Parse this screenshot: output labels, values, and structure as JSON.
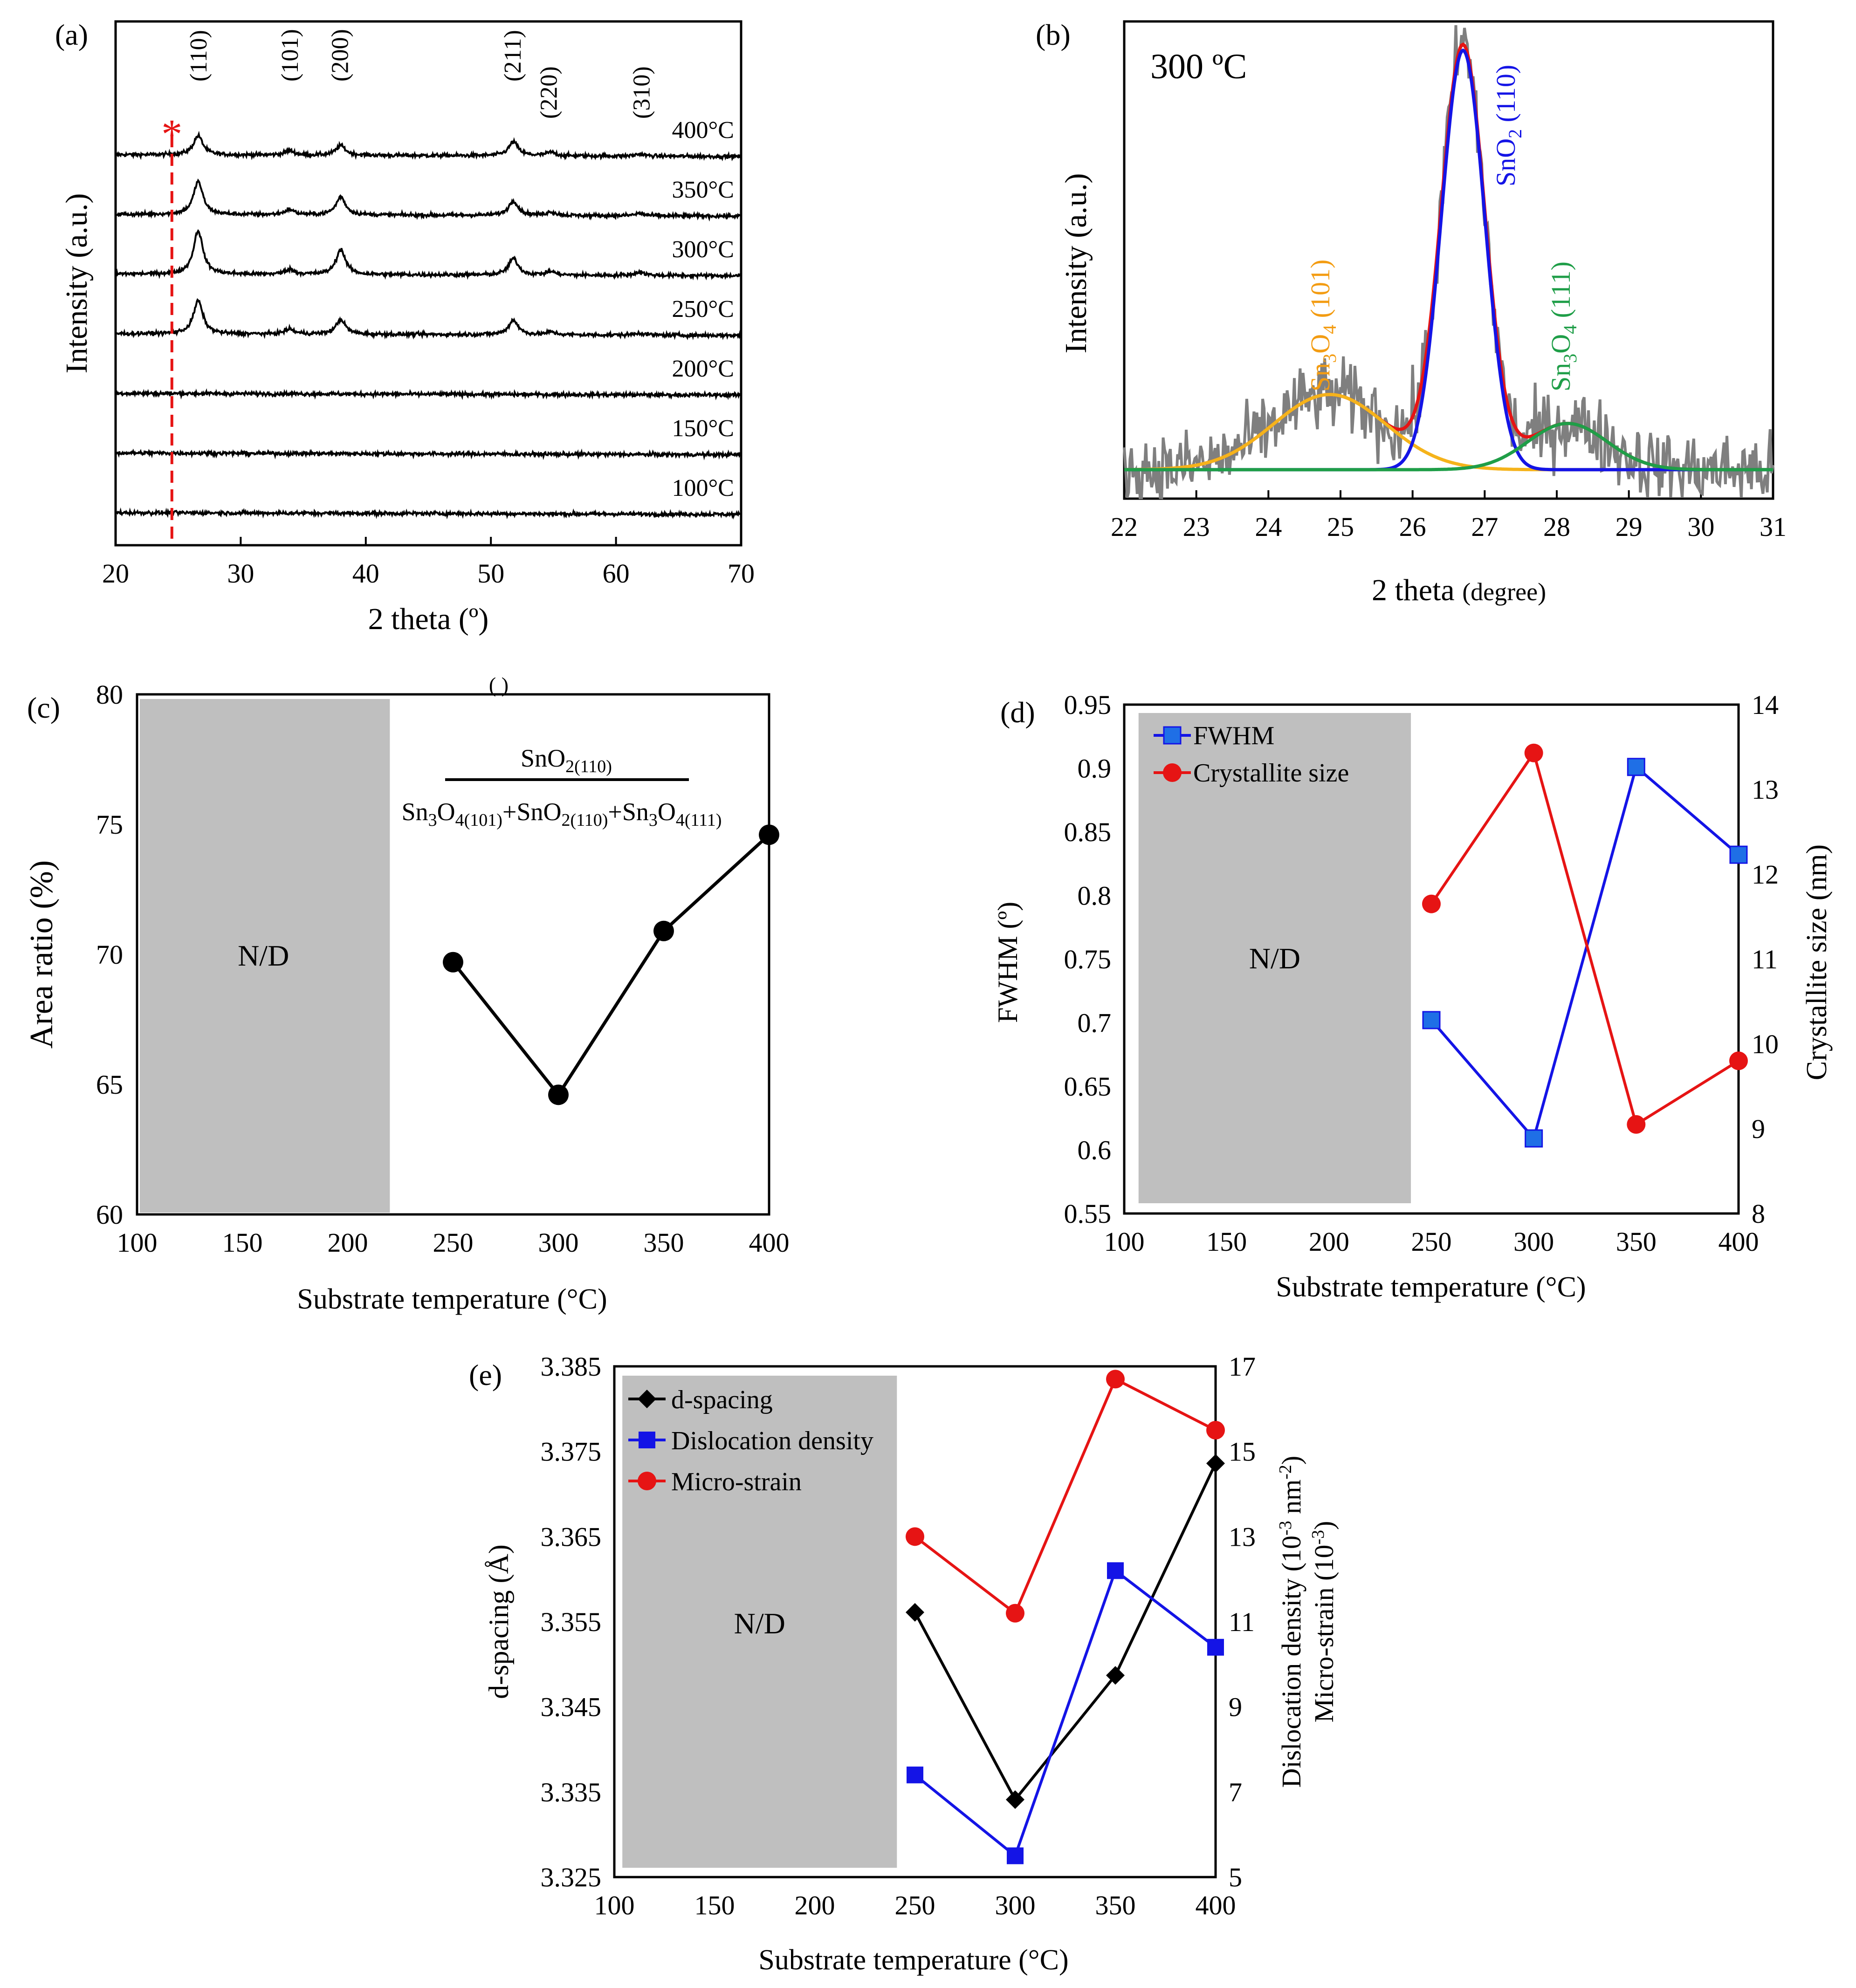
{
  "chart_data": [
    {
      "id": "a",
      "type": "line",
      "panel_label": "(a)",
      "xlabel": "2 theta (º)",
      "ylabel": "Intensity (a.u.)",
      "xlim": [
        20,
        70
      ],
      "xticks": [
        "20",
        "30",
        "40",
        "50",
        "60",
        "70"
      ],
      "series": [
        {
          "name": "400°C",
          "offset": 6,
          "peaks": [
            [
              26.6,
              0.55
            ],
            [
              33.9,
              0.13
            ],
            [
              38.0,
              0.28
            ],
            [
              51.8,
              0.4
            ],
            [
              54.8,
              0.1
            ],
            [
              61.9,
              0.06
            ]
          ]
        },
        {
          "name": "350°C",
          "offset": 5,
          "peaks": [
            [
              26.6,
              0.95
            ],
            [
              33.9,
              0.15
            ],
            [
              38.0,
              0.52
            ],
            [
              51.8,
              0.42
            ],
            [
              54.8,
              0.1
            ],
            [
              61.9,
              0.07
            ]
          ]
        },
        {
          "name": "300°C",
          "offset": 4,
          "peaks": [
            [
              26.6,
              1.25
            ],
            [
              33.9,
              0.14
            ],
            [
              38.0,
              0.72
            ],
            [
              51.8,
              0.48
            ],
            [
              54.8,
              0.1
            ],
            [
              61.9,
              0.1
            ]
          ]
        },
        {
          "name": "250°C",
          "offset": 3,
          "peaks": [
            [
              26.6,
              0.95
            ],
            [
              33.9,
              0.14
            ],
            [
              38.0,
              0.42
            ],
            [
              51.8,
              0.42
            ],
            [
              54.8,
              0.08
            ],
            [
              61.9,
              0.06
            ]
          ]
        },
        {
          "name": "200°C",
          "offset": 2,
          "peaks": []
        },
        {
          "name": "150°C",
          "offset": 1,
          "peaks": []
        },
        {
          "name": "100°C",
          "offset": 0,
          "peaks": []
        }
      ],
      "peak_labels": [
        {
          "label": "(110)",
          "x": 26.6
        },
        {
          "label": "(101)",
          "x": 33.9
        },
        {
          "label": "(200)",
          "x": 37.9
        },
        {
          "label": "(211)",
          "x": 51.7
        },
        {
          "label": "(220)",
          "x": 54.6
        },
        {
          "label": "(310)",
          "x": 62.0
        }
      ],
      "marker": {
        "symbol": "*",
        "x": 24.5
      }
    },
    {
      "id": "b",
      "type": "line",
      "panel_label": "(b)",
      "annotation": "300 ºC",
      "xlabel_main": "2 theta",
      "xlabel_unit": "(degree)",
      "ylabel": "Intensity (a.u.)",
      "xlim": [
        22,
        31
      ],
      "xticks": [
        "22",
        "23",
        "24",
        "25",
        "26",
        "27",
        "28",
        "29",
        "30",
        "31"
      ],
      "baseline": 0.1,
      "components": [
        {
          "name": "Sn3O4 (101)",
          "center": 24.85,
          "sigma": 0.78,
          "amp": 0.26,
          "color": "#f5b31b"
        },
        {
          "name": "SnO2 (110)",
          "center": 26.7,
          "sigma": 0.3,
          "amp": 1.45,
          "color": "#1414e6"
        },
        {
          "name": "Sn3O4 (111)",
          "center": 28.15,
          "sigma": 0.55,
          "amp": 0.16,
          "color": "#1f9e48"
        }
      ],
      "fit_color": "#e61414",
      "data_color": "#7f7f7f",
      "labels": {
        "sn3o4_101": {
          "a": "Sn",
          "b": "3",
          "c": "O",
          "d": "4",
          "e": " (101)"
        },
        "sno2_110": {
          "a": "SnO",
          "b": "2",
          "c": " (110)"
        },
        "sn3o4_111": {
          "a": "Sn",
          "b": "3",
          "c": "O",
          "d": "4",
          "e": " (111)"
        }
      }
    },
    {
      "id": "c",
      "type": "line",
      "panel_label": "(c)",
      "xlabel": "Substrate temperature (°C)",
      "ylabel": "Area ratio (%)",
      "xlim": [
        100,
        400
      ],
      "ylim": [
        60,
        80
      ],
      "xticks": [
        "100",
        "150",
        "200",
        "250",
        "300",
        "350",
        "400"
      ],
      "yticks": [
        "60",
        "65",
        "70",
        "75",
        "80"
      ],
      "nd_label": "N/D",
      "nd_range": [
        100,
        220
      ],
      "x": [
        250,
        300,
        350,
        400
      ],
      "values": [
        69.7,
        64.6,
        70.9,
        74.6
      ],
      "formula": {
        "num_a": "SnO",
        "num_b": "2(110)",
        "den_1a": "Sn",
        "den_1b": "3",
        "den_1c": "O",
        "den_1d": "4(101)",
        "plus": "+",
        "den_2a": "SnO",
        "den_2b": "2(110)",
        "den_3a": "Sn",
        "den_3b": "3",
        "den_3c": "O",
        "den_3d": "4(111)"
      },
      "top_fragment": "( )"
    },
    {
      "id": "d",
      "type": "line",
      "panel_label": "(d)",
      "xlabel": "Substrate temperature (°C)",
      "ylabel_left": "FWHM (º)",
      "ylabel_right": "Crystallite size (nm)",
      "xlim": [
        100,
        400
      ],
      "ylim_left": [
        0.55,
        0.95
      ],
      "ylim_right": [
        8,
        14
      ],
      "xticks": [
        "100",
        "150",
        "200",
        "250",
        "300",
        "350",
        "400"
      ],
      "yticks_left": [
        "0.55",
        "0.6",
        "0.65",
        "0.7",
        "0.75",
        "0.8",
        "0.85",
        "0.9",
        "0.95"
      ],
      "yticks_right": [
        "8",
        "9",
        "10",
        "11",
        "12",
        "13",
        "14"
      ],
      "nd_label": "N/D",
      "nd_range": [
        107,
        240
      ],
      "x": [
        250,
        300,
        350,
        400
      ],
      "series": [
        {
          "name": "FWHM",
          "axis": "left",
          "values": [
            0.702,
            0.609,
            0.901,
            0.832
          ],
          "color": "#1414e6",
          "marker": "square"
        },
        {
          "name": "Crystallite size",
          "axis": "right",
          "values": [
            11.65,
            13.43,
            9.05,
            9.8
          ],
          "color": "#e61414",
          "marker": "circle"
        }
      ]
    },
    {
      "id": "e",
      "type": "line",
      "panel_label": "(e)",
      "xlabel": "Substrate temperature (°C)",
      "ylabel_left": "d-spacing (Å)",
      "ylabel_right_1": "Dislocation density (10",
      "ylabel_right_1_sup": "-3",
      "ylabel_right_1_tail": " nm",
      "ylabel_right_1_sup2": "-2",
      "ylabel_right_1_end": ")",
      "ylabel_right_2": "Micro-strain (10",
      "ylabel_right_2_sup": "-3",
      "ylabel_right_2_end": ")",
      "xlim": [
        100,
        400
      ],
      "ylim_left": [
        3.325,
        3.385
      ],
      "ylim_right": [
        5,
        17
      ],
      "xticks": [
        "100",
        "150",
        "200",
        "250",
        "300",
        "350",
        "400"
      ],
      "yticks_left": [
        "3.325",
        "3.335",
        "3.345",
        "3.355",
        "3.365",
        "3.375",
        "3.385"
      ],
      "yticks_right": [
        "5",
        "7",
        "9",
        "11",
        "13",
        "15",
        "17"
      ],
      "nd_label": "N/D",
      "nd_range": [
        104,
        241
      ],
      "x": [
        250,
        300,
        350,
        400
      ],
      "series": [
        {
          "name": "d-spacing",
          "axis": "left",
          "values": [
            3.3561,
            3.3341,
            3.3487,
            3.3736
          ],
          "color": "#000000",
          "marker": "diamond"
        },
        {
          "name": "Dislocation density",
          "axis": "right",
          "values": [
            7.4,
            5.5,
            12.2,
            10.4
          ],
          "color": "#1414e6",
          "marker": "square"
        },
        {
          "name": "Micro-strain",
          "axis": "right",
          "values": [
            13.0,
            11.2,
            16.7,
            15.5
          ],
          "color": "#e61414",
          "marker": "circle"
        }
      ]
    }
  ]
}
